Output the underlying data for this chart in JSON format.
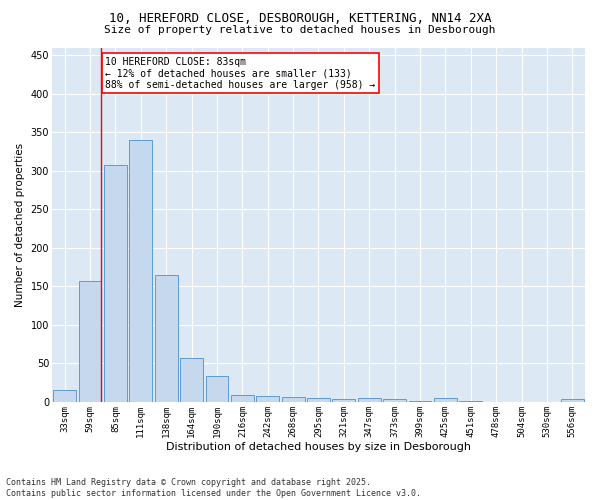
{
  "title_line1": "10, HEREFORD CLOSE, DESBOROUGH, KETTERING, NN14 2XA",
  "title_line2": "Size of property relative to detached houses in Desborough",
  "xlabel": "Distribution of detached houses by size in Desborough",
  "ylabel": "Number of detached properties",
  "categories": [
    "33sqm",
    "59sqm",
    "85sqm",
    "111sqm",
    "138sqm",
    "164sqm",
    "190sqm",
    "216sqm",
    "242sqm",
    "268sqm",
    "295sqm",
    "321sqm",
    "347sqm",
    "373sqm",
    "399sqm",
    "425sqm",
    "451sqm",
    "478sqm",
    "504sqm",
    "530sqm",
    "556sqm"
  ],
  "values": [
    15,
    157,
    308,
    340,
    165,
    57,
    33,
    9,
    8,
    6,
    5,
    4,
    5,
    4,
    1,
    5,
    1,
    0,
    0,
    0,
    4
  ],
  "bar_color": "#c5d8ed",
  "bar_edge_color": "#5b9bd5",
  "vline_x_index": 1,
  "vline_color": "red",
  "annotation_text": "10 HEREFORD CLOSE: 83sqm\n← 12% of detached houses are smaller (133)\n88% of semi-detached houses are larger (958) →",
  "annotation_box_color": "white",
  "annotation_box_edge": "red",
  "ylim": [
    0,
    460
  ],
  "yticks": [
    0,
    50,
    100,
    150,
    200,
    250,
    300,
    350,
    400,
    450
  ],
  "bg_color": "#dce9f5",
  "grid_color": "white",
  "footer_line1": "Contains HM Land Registry data © Crown copyright and database right 2025.",
  "footer_line2": "Contains public sector information licensed under the Open Government Licence v3.0."
}
